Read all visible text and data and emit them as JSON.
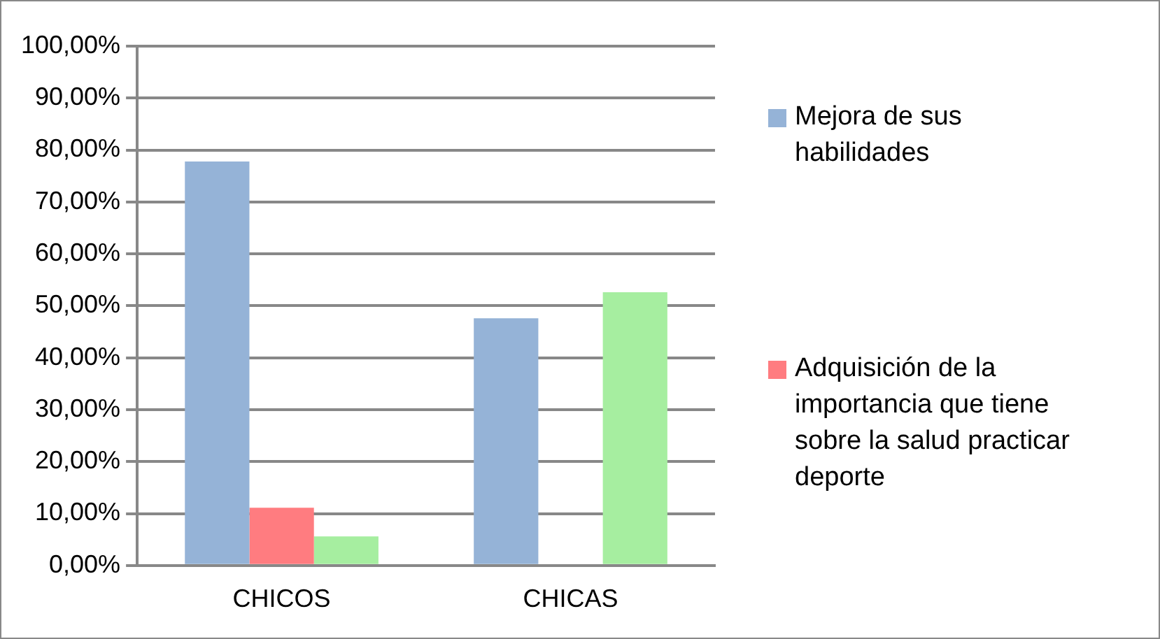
{
  "chart_data": {
    "type": "bar",
    "categories": [
      "CHICOS",
      "CHICAS"
    ],
    "series": [
      {
        "name": "Mejora de sus habilidades",
        "color": "#95b3d7",
        "values": [
          77.8,
          47.6
        ]
      },
      {
        "name": "Adquisición de la importancia que tiene sobre la salud practicar deporte",
        "color": "#ff7c80",
        "values": [
          11.1,
          0
        ]
      },
      {
        "color": "#a6eea0",
        "values": [
          5.6,
          52.6
        ]
      }
    ],
    "ylim": [
      0,
      100
    ],
    "yticks": [
      {
        "value": 0,
        "label": "0,00%"
      },
      {
        "value": 10,
        "label": "10,00%"
      },
      {
        "value": 20,
        "label": "20,00%"
      },
      {
        "value": 30,
        "label": "30,00%"
      },
      {
        "value": 40,
        "label": "40,00%"
      },
      {
        "value": 50,
        "label": "50,00%"
      },
      {
        "value": 60,
        "label": "60,00%"
      },
      {
        "value": 70,
        "label": "70,00%"
      },
      {
        "value": 80,
        "label": "80,00%"
      },
      {
        "value": 90,
        "label": "90,00%"
      },
      {
        "value": 100,
        "label": "100,00%"
      }
    ],
    "grid": "y",
    "legend": "right"
  }
}
